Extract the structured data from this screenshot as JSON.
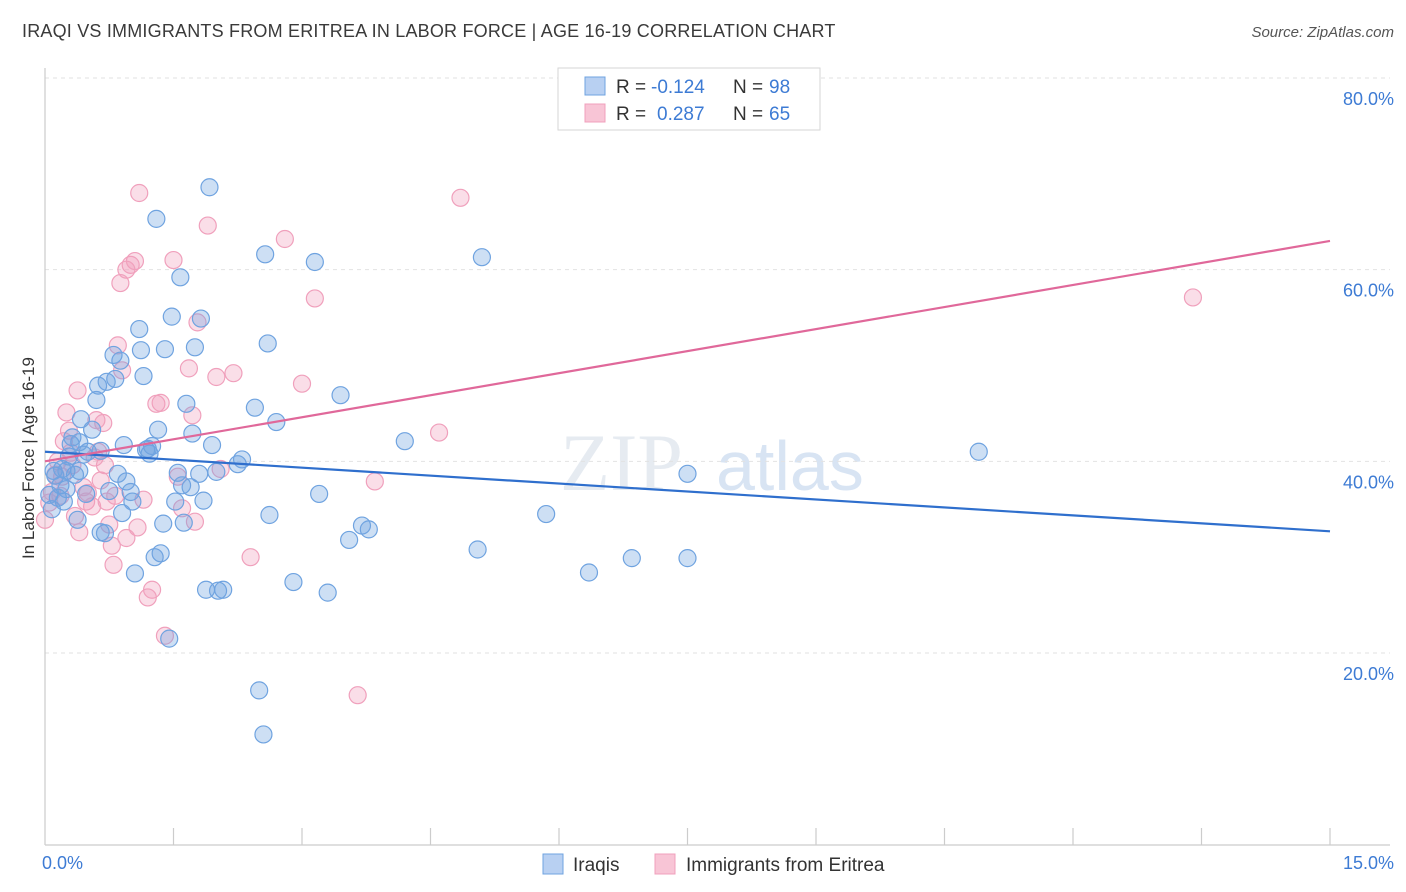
{
  "title": "IRAQI VS IMMIGRANTS FROM ERITREA IN LABOR FORCE | AGE 16-19 CORRELATION CHART",
  "source": "Source: ZipAtlas.com",
  "watermark": {
    "part1": "ZIP",
    "part2": "atlas"
  },
  "chart_data": {
    "type": "scatter",
    "title": "IRAQI VS IMMIGRANTS FROM ERITREA IN LABOR FORCE | AGE 16-19 CORRELATION CHART",
    "xlabel": "",
    "ylabel": "In Labor Force | Age 16-19",
    "xlim": [
      0,
      15
    ],
    "ylim": [
      0,
      85
    ],
    "x_tick_labels": [
      "0.0%",
      "15.0%"
    ],
    "y_ticks": [
      20,
      40,
      60,
      80
    ],
    "y_tick_labels": [
      "20.0%",
      "40.0%",
      "60.0%",
      "80.0%"
    ],
    "grid": "horizontal dashed",
    "legend_position": "top-center",
    "legend": [
      {
        "r_label": "R =",
        "r_value": "-0.124",
        "n_label": "N =",
        "n_value": "98"
      },
      {
        "r_label": "R =",
        "r_value": "0.287",
        "n_label": "N =",
        "n_value": "65"
      }
    ],
    "series": [
      {
        "name": "Iraqis",
        "color": "#6fa3e0",
        "line_color": "#2f6fcd",
        "trend": {
          "x": [
            0,
            15
          ],
          "y": [
            41.0,
            32.7
          ]
        },
        "points": [
          [
            0.05,
            36.5
          ],
          [
            0.08,
            35.0
          ],
          [
            0.1,
            39.0
          ],
          [
            0.12,
            38.5
          ],
          [
            0.15,
            36.2
          ],
          [
            0.18,
            37.5
          ],
          [
            0.2,
            39.2
          ],
          [
            0.22,
            35.8
          ],
          [
            0.25,
            39.0
          ],
          [
            0.28,
            40.5
          ],
          [
            0.3,
            41.8
          ],
          [
            0.32,
            42.5
          ],
          [
            0.35,
            38.6
          ],
          [
            0.38,
            33.9
          ],
          [
            0.4,
            42.0
          ],
          [
            0.42,
            44.4
          ],
          [
            0.45,
            40.7
          ],
          [
            0.48,
            36.6
          ],
          [
            0.5,
            41.0
          ],
          [
            0.55,
            43.3
          ],
          [
            0.6,
            46.4
          ],
          [
            0.62,
            47.9
          ],
          [
            0.65,
            41.1
          ],
          [
            0.7,
            32.5
          ],
          [
            0.72,
            48.3
          ],
          [
            0.75,
            36.9
          ],
          [
            0.8,
            51.1
          ],
          [
            0.82,
            48.6
          ],
          [
            0.85,
            38.7
          ],
          [
            0.88,
            50.5
          ],
          [
            0.9,
            34.6
          ],
          [
            0.92,
            41.7
          ],
          [
            0.95,
            37.9
          ],
          [
            1.0,
            36.8
          ],
          [
            1.02,
            35.8
          ],
          [
            1.05,
            28.3
          ],
          [
            1.1,
            53.8
          ],
          [
            1.12,
            51.6
          ],
          [
            1.15,
            48.9
          ],
          [
            1.2,
            41.3
          ],
          [
            1.22,
            40.8
          ],
          [
            1.25,
            41.6
          ],
          [
            1.28,
            30.0
          ],
          [
            1.3,
            65.3
          ],
          [
            1.32,
            43.3
          ],
          [
            1.35,
            30.4
          ],
          [
            1.38,
            33.5
          ],
          [
            1.4,
            51.7
          ],
          [
            1.45,
            21.5
          ],
          [
            1.48,
            55.1
          ],
          [
            1.52,
            35.8
          ],
          [
            1.55,
            38.8
          ],
          [
            1.58,
            59.2
          ],
          [
            1.6,
            37.5
          ],
          [
            1.62,
            33.6
          ],
          [
            1.65,
            46.0
          ],
          [
            1.7,
            37.3
          ],
          [
            1.72,
            42.9
          ],
          [
            1.75,
            51.9
          ],
          [
            1.8,
            38.7
          ],
          [
            1.82,
            54.9
          ],
          [
            1.85,
            35.9
          ],
          [
            1.88,
            26.6
          ],
          [
            1.92,
            68.6
          ],
          [
            1.95,
            41.7
          ],
          [
            2.0,
            38.9
          ],
          [
            2.02,
            26.5
          ],
          [
            2.08,
            26.6
          ],
          [
            2.25,
            39.7
          ],
          [
            2.3,
            40.2
          ],
          [
            2.45,
            45.6
          ],
          [
            2.5,
            16.1
          ],
          [
            2.55,
            11.5
          ],
          [
            2.57,
            61.6
          ],
          [
            2.6,
            52.3
          ],
          [
            2.62,
            34.4
          ],
          [
            2.7,
            44.1
          ],
          [
            2.9,
            27.4
          ],
          [
            3.15,
            60.8
          ],
          [
            3.2,
            36.6
          ],
          [
            3.3,
            26.3
          ],
          [
            3.45,
            46.9
          ],
          [
            3.55,
            31.8
          ],
          [
            3.7,
            33.3
          ],
          [
            3.78,
            32.9
          ],
          [
            4.2,
            42.1
          ],
          [
            5.05,
            30.8
          ],
          [
            5.1,
            61.3
          ],
          [
            5.85,
            34.5
          ],
          [
            6.35,
            28.4
          ],
          [
            6.85,
            29.9
          ],
          [
            7.5,
            38.7
          ],
          [
            7.5,
            29.9
          ],
          [
            10.9,
            41.0
          ],
          [
            0.4,
            39.0
          ],
          [
            0.65,
            32.6
          ],
          [
            1.18,
            41.2
          ],
          [
            0.25,
            37.1
          ]
        ]
      },
      {
        "name": "Immigrants from Eritrea",
        "color": "#f0a0bc",
        "line_color": "#e0689a",
        "trend": {
          "x": [
            0,
            15
          ],
          "y": [
            40.0,
            63.0
          ]
        },
        "points": [
          [
            0.0,
            33.9
          ],
          [
            0.05,
            35.7
          ],
          [
            0.08,
            36.8
          ],
          [
            0.12,
            38.6
          ],
          [
            0.15,
            40.0
          ],
          [
            0.18,
            36.4
          ],
          [
            0.2,
            38.4
          ],
          [
            0.22,
            42.1
          ],
          [
            0.25,
            45.1
          ],
          [
            0.28,
            43.2
          ],
          [
            0.3,
            40.9
          ],
          [
            0.32,
            39.6
          ],
          [
            0.35,
            34.3
          ],
          [
            0.38,
            47.4
          ],
          [
            0.4,
            32.6
          ],
          [
            0.45,
            37.3
          ],
          [
            0.48,
            35.8
          ],
          [
            0.5,
            36.7
          ],
          [
            0.55,
            35.3
          ],
          [
            0.58,
            40.4
          ],
          [
            0.6,
            44.3
          ],
          [
            0.62,
            41.0
          ],
          [
            0.65,
            38.0
          ],
          [
            0.68,
            44.0
          ],
          [
            0.7,
            39.6
          ],
          [
            0.72,
            35.8
          ],
          [
            0.75,
            33.4
          ],
          [
            0.78,
            31.2
          ],
          [
            0.8,
            29.2
          ],
          [
            0.82,
            36.4
          ],
          [
            0.85,
            52.1
          ],
          [
            0.88,
            58.6
          ],
          [
            0.9,
            49.5
          ],
          [
            0.95,
            60.0
          ],
          [
            1.0,
            60.5
          ],
          [
            1.05,
            60.9
          ],
          [
            1.08,
            33.1
          ],
          [
            1.1,
            68.0
          ],
          [
            1.2,
            25.8
          ],
          [
            1.25,
            26.6
          ],
          [
            1.3,
            46.0
          ],
          [
            1.35,
            46.1
          ],
          [
            1.4,
            21.8
          ],
          [
            1.5,
            61.0
          ],
          [
            1.55,
            38.4
          ],
          [
            1.6,
            35.1
          ],
          [
            1.68,
            49.7
          ],
          [
            1.72,
            44.8
          ],
          [
            1.75,
            33.7
          ],
          [
            1.78,
            54.5
          ],
          [
            1.9,
            64.6
          ],
          [
            2.0,
            48.8
          ],
          [
            2.05,
            39.2
          ],
          [
            2.2,
            49.2
          ],
          [
            2.4,
            30.0
          ],
          [
            2.8,
            63.2
          ],
          [
            3.0,
            48.1
          ],
          [
            3.15,
            57.0
          ],
          [
            3.65,
            15.6
          ],
          [
            3.85,
            37.9
          ],
          [
            4.6,
            43.0
          ],
          [
            4.85,
            67.5
          ],
          [
            13.4,
            57.1
          ],
          [
            1.15,
            36.0
          ],
          [
            0.95,
            32.0
          ]
        ]
      }
    ]
  },
  "bottom_legend": [
    {
      "label": "Iraqis"
    },
    {
      "label": "Immigrants from Eritrea"
    }
  ]
}
